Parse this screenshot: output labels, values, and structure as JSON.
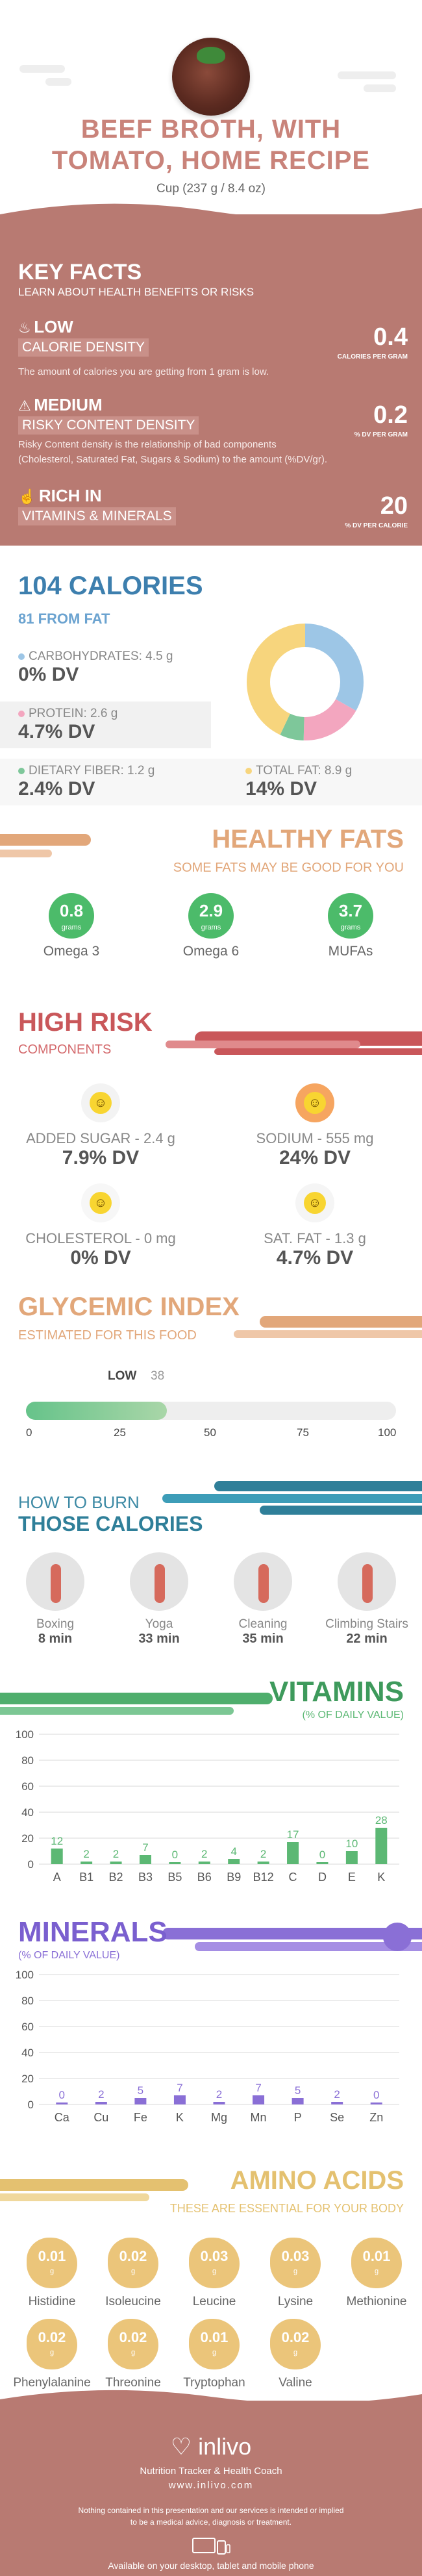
{
  "header": {
    "title_line1": "BEEF BROTH, WITH",
    "title_line2": "TOMATO, HOME RECIPE",
    "serving": "Cup (237 g / 8.4 oz)"
  },
  "key_facts": {
    "title": "KEY FACTS",
    "subtitle": "LEARN ABOUT HEALTH BENEFITS OR RISKS",
    "calorie_density": {
      "level": "LOW",
      "label": "CALORIE DENSITY",
      "value": "0.4",
      "unit": "CALORIES PER GRAM",
      "desc": "The amount of calories you are getting from 1 gram is low."
    },
    "risky_density": {
      "level": "MEDIUM",
      "label": "RISKY CONTENT DENSITY",
      "value": "0.2",
      "unit": "% DV PER GRAM",
      "desc1": "Risky Content density is the relationship of bad components",
      "desc2": "(Cholesterol, Saturated Fat, Sugars & Sodium) to the amount (%DV/gr)."
    },
    "rich": {
      "level": "RICH  IN",
      "label": "VITAMINS & MINERALS",
      "value": "20",
      "unit": "% DV PER CALORIE"
    }
  },
  "calories": {
    "title": "104 CALORIES",
    "from_fat": "81 FROM FAT",
    "carbs": {
      "label": "CARBOHYDRATES: 4.5 g",
      "dv": "0% DV",
      "color": "#9dc6e6"
    },
    "protein": {
      "label": "PROTEIN: 2.6 g",
      "dv": "4.7% DV",
      "color": "#f3a6bf"
    },
    "fiber": {
      "label": "DIETARY FIBER: 1.2 g",
      "dv": "2.4% DV",
      "color": "#7ec79a"
    },
    "fat": {
      "label": "TOTAL FAT: 8.9 g",
      "dv": "14% DV",
      "color": "#f7d57d"
    }
  },
  "healthy_fats": {
    "title": "HEALTHY FATS",
    "subtitle": "SOME FATS MAY BE GOOD FOR YOU",
    "unit": "grams",
    "items": [
      {
        "value": "0.8",
        "name": "Omega 3"
      },
      {
        "value": "2.9",
        "name": "Omega 6"
      },
      {
        "value": "3.7",
        "name": "MUFAs"
      }
    ]
  },
  "high_risk": {
    "title": "HIGH RISK",
    "subtitle": "COMPONENTS",
    "items": [
      {
        "label": "ADDED SUGAR - 2.4 g",
        "dv": "7.9% DV"
      },
      {
        "label": "SODIUM - 555 mg",
        "dv": "24% DV"
      },
      {
        "label": "CHOLESTEROL - 0 mg",
        "dv": "0% DV"
      },
      {
        "label": "SAT. FAT - 1.3 g",
        "dv": "4.7% DV"
      }
    ]
  },
  "glycemic": {
    "title": "GLYCEMIC INDEX",
    "subtitle": "ESTIMATED FOR THIS FOOD",
    "level": "LOW",
    "value": 38,
    "value_text": "38",
    "ticks": [
      "0",
      "25",
      "50",
      "75",
      "100"
    ]
  },
  "burn": {
    "title1": "HOW TO BURN",
    "title2": "THOSE CALORIES",
    "items": [
      {
        "name": "Boxing",
        "min": "8 min"
      },
      {
        "name": "Yoga",
        "min": "33 min"
      },
      {
        "name": "Cleaning",
        "min": "35 min"
      },
      {
        "name": "Climbing Stairs",
        "min": "22 min"
      }
    ]
  },
  "vitamins": {
    "title": "VITAMINS",
    "subtitle": "(% OF DAILY VALUE)",
    "chart_data": {
      "type": "bar",
      "categories": [
        "A",
        "B1",
        "B2",
        "B3",
        "B5",
        "B6",
        "B9",
        "B12",
        "C",
        "D",
        "E",
        "K"
      ],
      "values": [
        12,
        2,
        2,
        7,
        0,
        2,
        4,
        2,
        17,
        0,
        10,
        28
      ],
      "labels": [
        "12",
        "2",
        "2",
        "7",
        "0",
        "2",
        "4",
        "2",
        "17",
        "0",
        "10",
        "28"
      ],
      "yticks": [
        "0",
        "20",
        "40",
        "60",
        "80",
        "100"
      ],
      "ylim": [
        0,
        100
      ],
      "color": "#5cb874"
    }
  },
  "minerals": {
    "title": "MINERALS",
    "subtitle": "(% OF DAILY VALUE)",
    "chart_data": {
      "type": "bar",
      "categories": [
        "Ca",
        "Cu",
        "Fe",
        "K",
        "Mg",
        "Mn",
        "P",
        "Se",
        "Zn"
      ],
      "values": [
        0,
        2,
        5,
        7,
        2,
        7,
        5,
        2,
        0
      ],
      "labels": [
        "0",
        "2",
        "5",
        "7",
        "2",
        "7",
        "5",
        "2",
        "0"
      ],
      "yticks": [
        "0",
        "20",
        "40",
        "60",
        "80",
        "100"
      ],
      "ylim": [
        0,
        100
      ],
      "color": "#8a6fd6"
    }
  },
  "amino": {
    "title": "AMINO ACIDS",
    "subtitle": "THESE ARE ESSENTIAL FOR YOUR BODY",
    "unit": "g",
    "items": [
      {
        "value": "0.01",
        "name": "Histidine"
      },
      {
        "value": "0.02",
        "name": "Isoleucine"
      },
      {
        "value": "0.03",
        "name": "Leucine"
      },
      {
        "value": "0.03",
        "name": "Lysine"
      },
      {
        "value": "0.01",
        "name": "Methionine"
      },
      {
        "value": "0.02",
        "name": "Phenylalanine"
      },
      {
        "value": "0.02",
        "name": "Threonine"
      },
      {
        "value": "0.01",
        "name": "Tryptophan"
      },
      {
        "value": "0.02",
        "name": "Valine"
      }
    ]
  },
  "footer": {
    "logo": "inlivo",
    "tagline": "Nutrition Tracker & Health Coach",
    "url": "www.inlivo.com",
    "disclaimer1": "Nothing contained in this presentation and our services is intended or implied",
    "disclaimer2": "to be a medical advice, diagnosis or treatment.",
    "available": "Available on your desktop, tablet and mobile phone"
  }
}
